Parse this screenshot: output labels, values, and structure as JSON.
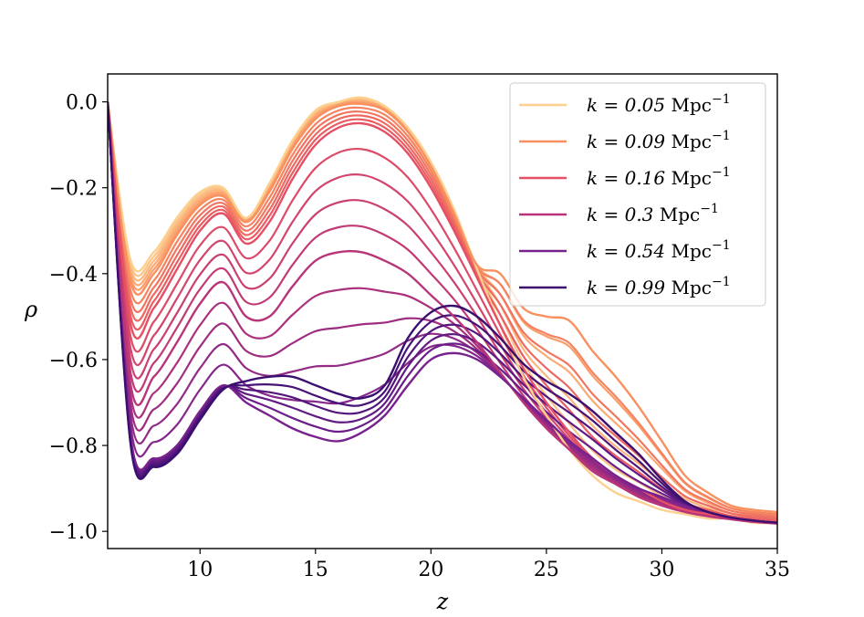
{
  "chart_data": {
    "type": "line",
    "xlabel": "z",
    "ylabel": "ρ",
    "xlim": [
      6,
      35
    ],
    "ylim": [
      -1.04,
      0.065
    ],
    "x_ticks": [
      10,
      15,
      20,
      25,
      30,
      35
    ],
    "x_tick_labels": [
      "10",
      "15",
      "20",
      "25",
      "30",
      "35"
    ],
    "y_ticks": [
      0.0,
      -0.2,
      -0.4,
      -0.6,
      -0.8,
      -1.0
    ],
    "y_tick_labels": [
      "0.0",
      "−0.2",
      "−0.4",
      "−0.6",
      "−0.8",
      "−1.0"
    ],
    "legend_position": "top-right",
    "colormap": "magma",
    "legend": [
      {
        "k_label": "k = 0.05",
        "unit": "Mpc",
        "exp": "−1",
        "color": "#fcd08f"
      },
      {
        "k_label": "k = 0.09",
        "unit": "Mpc",
        "exp": "−1",
        "color": "#f9905f"
      },
      {
        "k_label": "k = 0.16",
        "unit": "Mpc",
        "exp": "−1",
        "color": "#e55064"
      },
      {
        "k_label": "k = 0.3",
        "unit": "Mpc",
        "exp": "−1",
        "color": "#b83579"
      },
      {
        "k_label": "k = 0.54",
        "unit": "Mpc",
        "exp": "−1",
        "color": "#78228e"
      },
      {
        "k_label": "k = 0.99",
        "unit": "Mpc",
        "exp": "−1",
        "color": "#3b0f70"
      }
    ],
    "x": [
      6,
      7,
      8,
      9,
      10,
      11,
      12,
      13,
      14,
      15,
      16,
      17,
      18,
      19,
      20,
      21,
      22,
      23,
      24,
      25,
      26,
      27,
      28,
      29,
      30,
      31,
      32,
      33,
      34,
      35
    ],
    "series": [
      {
        "name": "k=0.05",
        "color": "#fcd08f",
        "values": [
          0,
          -0.37,
          -0.35,
          -0.27,
          -0.21,
          -0.2,
          -0.27,
          -0.19,
          -0.09,
          -0.02,
          0.0,
          0.01,
          -0.01,
          -0.06,
          -0.14,
          -0.25,
          -0.39,
          -0.52,
          -0.64,
          -0.73,
          -0.81,
          -0.87,
          -0.91,
          -0.93,
          -0.95,
          -0.96,
          -0.97,
          -0.97,
          -0.98,
          -0.98
        ]
      },
      {
        "name": "k=0.09",
        "color": "#f9905f",
        "values": [
          0,
          -0.42,
          -0.4,
          -0.31,
          -0.24,
          -0.22,
          -0.28,
          -0.21,
          -0.11,
          -0.04,
          -0.01,
          -0.005,
          -0.02,
          -0.07,
          -0.15,
          -0.26,
          -0.38,
          -0.4,
          -0.48,
          -0.5,
          -0.51,
          -0.58,
          -0.64,
          -0.71,
          -0.79,
          -0.87,
          -0.91,
          -0.94,
          -0.95,
          -0.955
        ]
      },
      {
        "name": "k=0.16",
        "color": "#e55064",
        "values": [
          0,
          -0.52,
          -0.48,
          -0.39,
          -0.3,
          -0.26,
          -0.33,
          -0.28,
          -0.18,
          -0.1,
          -0.06,
          -0.05,
          -0.07,
          -0.12,
          -0.2,
          -0.3,
          -0.41,
          -0.52,
          -0.62,
          -0.7,
          -0.77,
          -0.83,
          -0.87,
          -0.9,
          -0.93,
          -0.95,
          -0.96,
          -0.97,
          -0.975,
          -0.98
        ]
      },
      {
        "name": "k=0.3",
        "color": "#b83579",
        "values": [
          0,
          -0.66,
          -0.64,
          -0.56,
          -0.47,
          -0.42,
          -0.5,
          -0.5,
          -0.43,
          -0.37,
          -0.35,
          -0.35,
          -0.37,
          -0.4,
          -0.45,
          -0.5,
          -0.56,
          -0.63,
          -0.7,
          -0.76,
          -0.81,
          -0.86,
          -0.89,
          -0.92,
          -0.94,
          -0.955,
          -0.965,
          -0.972,
          -0.978,
          -0.982
        ]
      },
      {
        "name": "k=0.54",
        "color": "#78228e",
        "values": [
          0,
          -0.78,
          -0.83,
          -0.8,
          -0.72,
          -0.66,
          -0.7,
          -0.73,
          -0.76,
          -0.78,
          -0.79,
          -0.77,
          -0.73,
          -0.66,
          -0.6,
          -0.585,
          -0.6,
          -0.64,
          -0.69,
          -0.74,
          -0.79,
          -0.83,
          -0.87,
          -0.9,
          -0.92,
          -0.94,
          -0.955,
          -0.968,
          -0.975,
          -0.98
        ]
      },
      {
        "name": "k=0.99",
        "color": "#3b0f70",
        "values": [
          0,
          -0.8,
          -0.85,
          -0.82,
          -0.74,
          -0.67,
          -0.65,
          -0.64,
          -0.64,
          -0.66,
          -0.68,
          -0.69,
          -0.66,
          -0.55,
          -0.49,
          -0.475,
          -0.5,
          -0.55,
          -0.61,
          -0.65,
          -0.68,
          -0.72,
          -0.77,
          -0.82,
          -0.88,
          -0.93,
          -0.955,
          -0.968,
          -0.975,
          -0.98
        ]
      }
    ]
  }
}
